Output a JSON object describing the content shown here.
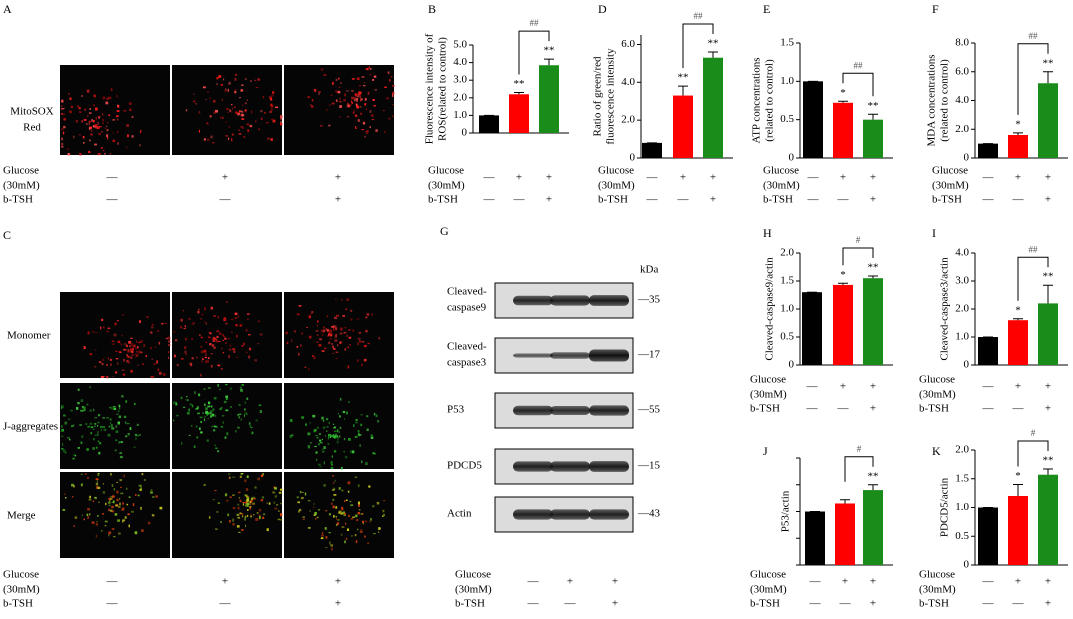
{
  "panel_A": {
    "letter": "A",
    "row_label": [
      "MitoSOX",
      "Red"
    ]
  },
  "panel_C": {
    "letter": "C",
    "row_labels": [
      "Monomer",
      "J-aggregates",
      "Merge"
    ]
  },
  "panel_G": {
    "letter": "G",
    "unit": "kDa",
    "bands": [
      {
        "label": [
          "Cleaved-",
          "caspase9"
        ],
        "marker": "—35"
      },
      {
        "label": [
          "Cleaved-",
          "caspase3"
        ],
        "marker": "—17"
      },
      {
        "label": [
          "P53"
        ],
        "marker": "—55"
      },
      {
        "label": [
          "PDCD5"
        ],
        "marker": "—15"
      },
      {
        "label": [
          "Actin"
        ],
        "marker": "—43"
      }
    ]
  },
  "conditions": {
    "glucose": [
      "Glucose",
      "(30mM)"
    ],
    "btsh": "b-TSH",
    "glucose_signs": [
      "—",
      "+",
      "+"
    ],
    "btsh_signs": [
      "—",
      "—",
      "+"
    ]
  },
  "chart_data": [
    {
      "type": "bar",
      "letter": "B",
      "ylabel": [
        "Fluorescence intensity of",
        "ROS(related to control)"
      ],
      "categories": [
        null,
        null,
        null
      ],
      "values": [
        1.0,
        2.2,
        3.85
      ],
      "errors": [
        0,
        0.1,
        0.35
      ],
      "colors": [
        "#000000",
        "#ff0000",
        "#1a8c1a"
      ],
      "significance": [
        null,
        "**",
        "**"
      ],
      "bracket_label": "##",
      "ylim": [
        0,
        5
      ],
      "yticks": [
        0,
        {
          "value": 1,
          "label": "1.0"
        },
        {
          "value": 2,
          "label": "2.0"
        },
        {
          "value": 3,
          "label": "3.0"
        },
        {
          "value": 4,
          "label": "4.0"
        },
        {
          "value": 5,
          "label": "5.0"
        }
      ]
    },
    {
      "type": "bar",
      "letter": "D",
      "ylabel": [
        "Ratio of green/red",
        "fluorescence intensity"
      ],
      "categories": [
        null,
        null,
        null
      ],
      "values": [
        0.8,
        3.3,
        5.3
      ],
      "errors": [
        0,
        0.5,
        0.3
      ],
      "colors": [
        "#000000",
        "#ff0000",
        "#1a8c1a"
      ],
      "significance": [
        null,
        "**",
        "**"
      ],
      "bracket_label": "##",
      "ylim": [
        0,
        6.5
      ],
      "yticks": [
        0,
        {
          "value": 2,
          "label": "2.0"
        },
        {
          "value": 4,
          "label": "4.0"
        },
        {
          "value": 6,
          "label": "6.0"
        }
      ]
    },
    {
      "type": "bar",
      "letter": "E",
      "ylabel": [
        "ATP concentrations",
        "(related to control)"
      ],
      "categories": [
        null,
        null,
        null
      ],
      "values": [
        1.0,
        0.72,
        0.5
      ],
      "errors": [
        0,
        0.02,
        0.07
      ],
      "colors": [
        "#000000",
        "#ff0000",
        "#1a8c1a"
      ],
      "significance": [
        null,
        "*",
        "**"
      ],
      "bracket_label": "##",
      "ylim": [
        0,
        1.5
      ],
      "yticks": [
        0,
        0.5,
        {
          "value": 1,
          "label": "1.0"
        },
        1.5
      ]
    },
    {
      "type": "bar",
      "letter": "F",
      "ylabel": [
        "MDA concentrations",
        "(related to control)"
      ],
      "categories": [
        null,
        null,
        null
      ],
      "values": [
        1.0,
        1.6,
        5.2
      ],
      "errors": [
        0,
        0.15,
        0.8
      ],
      "colors": [
        "#000000",
        "#ff0000",
        "#1a8c1a"
      ],
      "significance": [
        null,
        "*",
        "**"
      ],
      "bracket_label": "##",
      "ylim": [
        0,
        8
      ],
      "yticks": [
        0,
        {
          "value": 2,
          "label": "2.0"
        },
        {
          "value": 4,
          "label": "4.0"
        },
        {
          "value": 6,
          "label": "6.0"
        },
        {
          "value": 8,
          "label": "8.0"
        }
      ]
    },
    {
      "type": "bar",
      "letter": "H",
      "ylabel": [
        "Cleaved-caspase9/actin"
      ],
      "categories": [
        null,
        null,
        null
      ],
      "values": [
        1.3,
        1.43,
        1.55
      ],
      "errors": [
        0,
        0.03,
        0.04
      ],
      "colors": [
        "#000000",
        "#ff0000",
        "#1a8c1a"
      ],
      "significance": [
        null,
        "*",
        "**"
      ],
      "bracket_label": "#",
      "ylim": [
        0,
        2
      ],
      "yticks": [
        0,
        0.5,
        {
          "value": 1,
          "label": "1.0"
        },
        1.5,
        {
          "value": 2,
          "label": "2.0"
        }
      ]
    },
    {
      "type": "bar",
      "letter": "I",
      "ylabel": [
        "Cleaved-caspase3/actin"
      ],
      "categories": [
        null,
        null,
        null
      ],
      "values": [
        1.0,
        1.6,
        2.2
      ],
      "errors": [
        0,
        0.05,
        0.65
      ],
      "colors": [
        "#000000",
        "#ff0000",
        "#1a8c1a"
      ],
      "significance": [
        null,
        "*",
        "**"
      ],
      "bracket_label": "##",
      "ylim": [
        0,
        4
      ],
      "yticks": [
        0,
        {
          "value": 1,
          "label": "1.0"
        },
        {
          "value": 2,
          "label": "2.0"
        },
        {
          "value": 3,
          "label": "3.0"
        },
        {
          "value": 4,
          "label": "4.0"
        }
      ]
    },
    {
      "type": "bar",
      "letter": "J",
      "ylabel": [
        "P53/actin"
      ],
      "categories": [
        null,
        null,
        null
      ],
      "values": [
        1.0,
        1.15,
        1.4
      ],
      "errors": [
        0,
        0.07,
        0.1
      ],
      "colors": [
        "#000000",
        "#ff0000",
        "#1a8c1a"
      ],
      "significance": [
        null,
        null,
        "**"
      ],
      "bracket_label": "#",
      "ylim": [
        0,
        2
      ],
      "yticks": [
        0,
        0.5,
        {
          "value": 1,
          "label": "1.0"
        },
        1.5,
        {
          "value": 2,
          "label": "2.0"
        }
      ],
      "tick_labels": false
    },
    {
      "type": "bar",
      "letter": "K",
      "ylabel": [
        "PDCD5/actin"
      ],
      "categories": [
        null,
        null,
        null
      ],
      "values": [
        1.0,
        1.2,
        1.57
      ],
      "errors": [
        0,
        0.2,
        0.1
      ],
      "colors": [
        "#000000",
        "#ff0000",
        "#1a8c1a"
      ],
      "significance": [
        null,
        "*",
        "**"
      ],
      "bracket_label": "#",
      "ylim": [
        0,
        2
      ],
      "yticks": [
        0,
        0.5,
        {
          "value": 1,
          "label": "1.0"
        },
        1.5,
        {
          "value": 2,
          "label": "2.0"
        }
      ]
    }
  ]
}
